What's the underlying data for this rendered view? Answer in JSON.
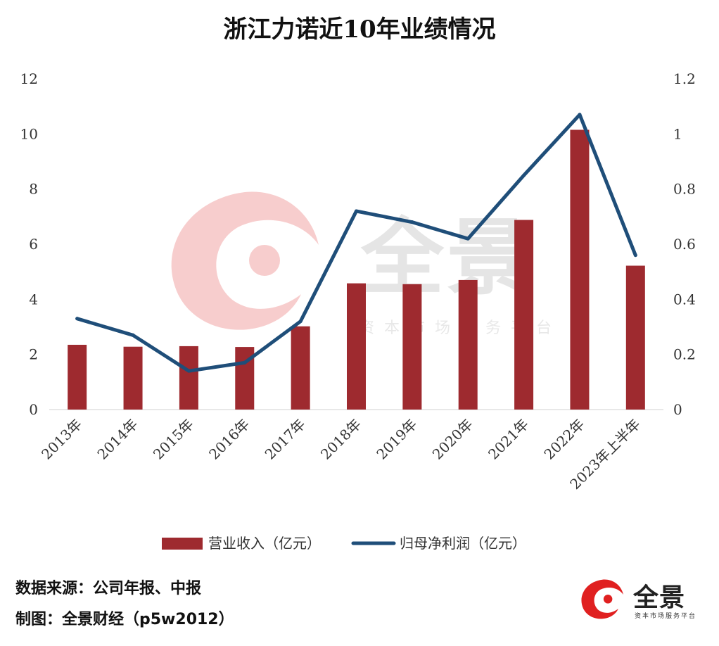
{
  "chart_data": {
    "type": "bar",
    "title": "浙江力诺近10年业绩情况",
    "categories": [
      "2013年",
      "2014年",
      "2015年",
      "2016年",
      "2017年",
      "2018年",
      "2019年",
      "2020年",
      "2021年",
      "2022年",
      "2023年上半年"
    ],
    "series": [
      {
        "name": "营业收入（亿元）",
        "type": "bar",
        "axis": "left",
        "color": "#9e2a2f",
        "values": [
          2.35,
          2.28,
          2.3,
          2.27,
          3.02,
          4.58,
          4.55,
          4.7,
          6.88,
          10.15,
          5.22
        ]
      },
      {
        "name": "归母净利润（亿元）",
        "type": "line",
        "axis": "right",
        "color": "#1f4e79",
        "values": [
          0.33,
          0.27,
          0.14,
          0.17,
          0.32,
          0.72,
          0.68,
          0.62,
          0.85,
          1.07,
          0.56
        ]
      }
    ],
    "y_left": {
      "min": 0,
      "max": 12,
      "ticks": [
        "0",
        "2",
        "4",
        "6",
        "8",
        "10",
        "12"
      ]
    },
    "y_right": {
      "min": 0,
      "max": 1.2,
      "ticks": [
        "0",
        "0.2",
        "0.4",
        "0.6",
        "0.8",
        "1",
        "1.2"
      ]
    },
    "grid": false,
    "legend_position": "bottom"
  },
  "footer": {
    "source": "数据来源：公司年报、中报",
    "credit": "制图：全景财经（p5w2012）"
  },
  "logo": {
    "name": "全景",
    "tagline": "资本市场服务平台",
    "color": "#e02020"
  },
  "watermark": {
    "name": "全景",
    "tagline": "资本市场服务平台"
  }
}
